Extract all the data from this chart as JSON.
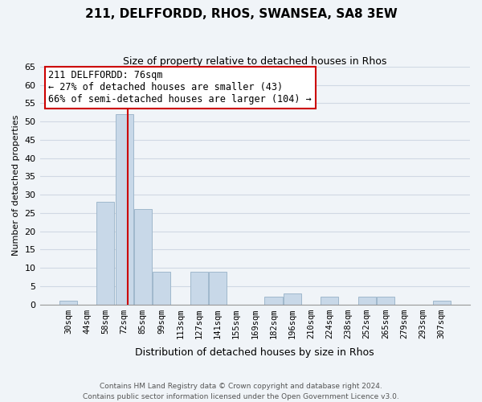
{
  "title": "211, DELFFORDD, RHOS, SWANSEA, SA8 3EW",
  "subtitle": "Size of property relative to detached houses in Rhos",
  "xlabel": "Distribution of detached houses by size in Rhos",
  "ylabel": "Number of detached properties",
  "bar_labels": [
    "30sqm",
    "44sqm",
    "58sqm",
    "72sqm",
    "85sqm",
    "99sqm",
    "113sqm",
    "127sqm",
    "141sqm",
    "155sqm",
    "169sqm",
    "182sqm",
    "196sqm",
    "210sqm",
    "224sqm",
    "238sqm",
    "252sqm",
    "265sqm",
    "279sqm",
    "293sqm",
    "307sqm"
  ],
  "bar_values": [
    1,
    0,
    28,
    52,
    26,
    9,
    0,
    9,
    9,
    0,
    0,
    2,
    3,
    0,
    2,
    0,
    2,
    2,
    0,
    0,
    1
  ],
  "bar_color": "#c8d8e8",
  "bar_edge_color": "#a0b8cc",
  "vline_x": 3.2,
  "vline_color": "#cc0000",
  "annotation_line1": "211 DELFFORDD: 76sqm",
  "annotation_line2": "← 27% of detached houses are smaller (43)",
  "annotation_line3": "66% of semi-detached houses are larger (104) →",
  "ylim": [
    0,
    65
  ],
  "yticks": [
    0,
    5,
    10,
    15,
    20,
    25,
    30,
    35,
    40,
    45,
    50,
    55,
    60,
    65
  ],
  "footer": "Contains HM Land Registry data © Crown copyright and database right 2024.\nContains public sector information licensed under the Open Government Licence v3.0.",
  "bg_color": "#f0f4f8",
  "grid_color": "#d0d8e4",
  "title_fontsize": 11,
  "subtitle_fontsize": 9,
  "xlabel_fontsize": 9,
  "ylabel_fontsize": 8,
  "tick_fontsize": 7.5,
  "footer_fontsize": 6.5
}
